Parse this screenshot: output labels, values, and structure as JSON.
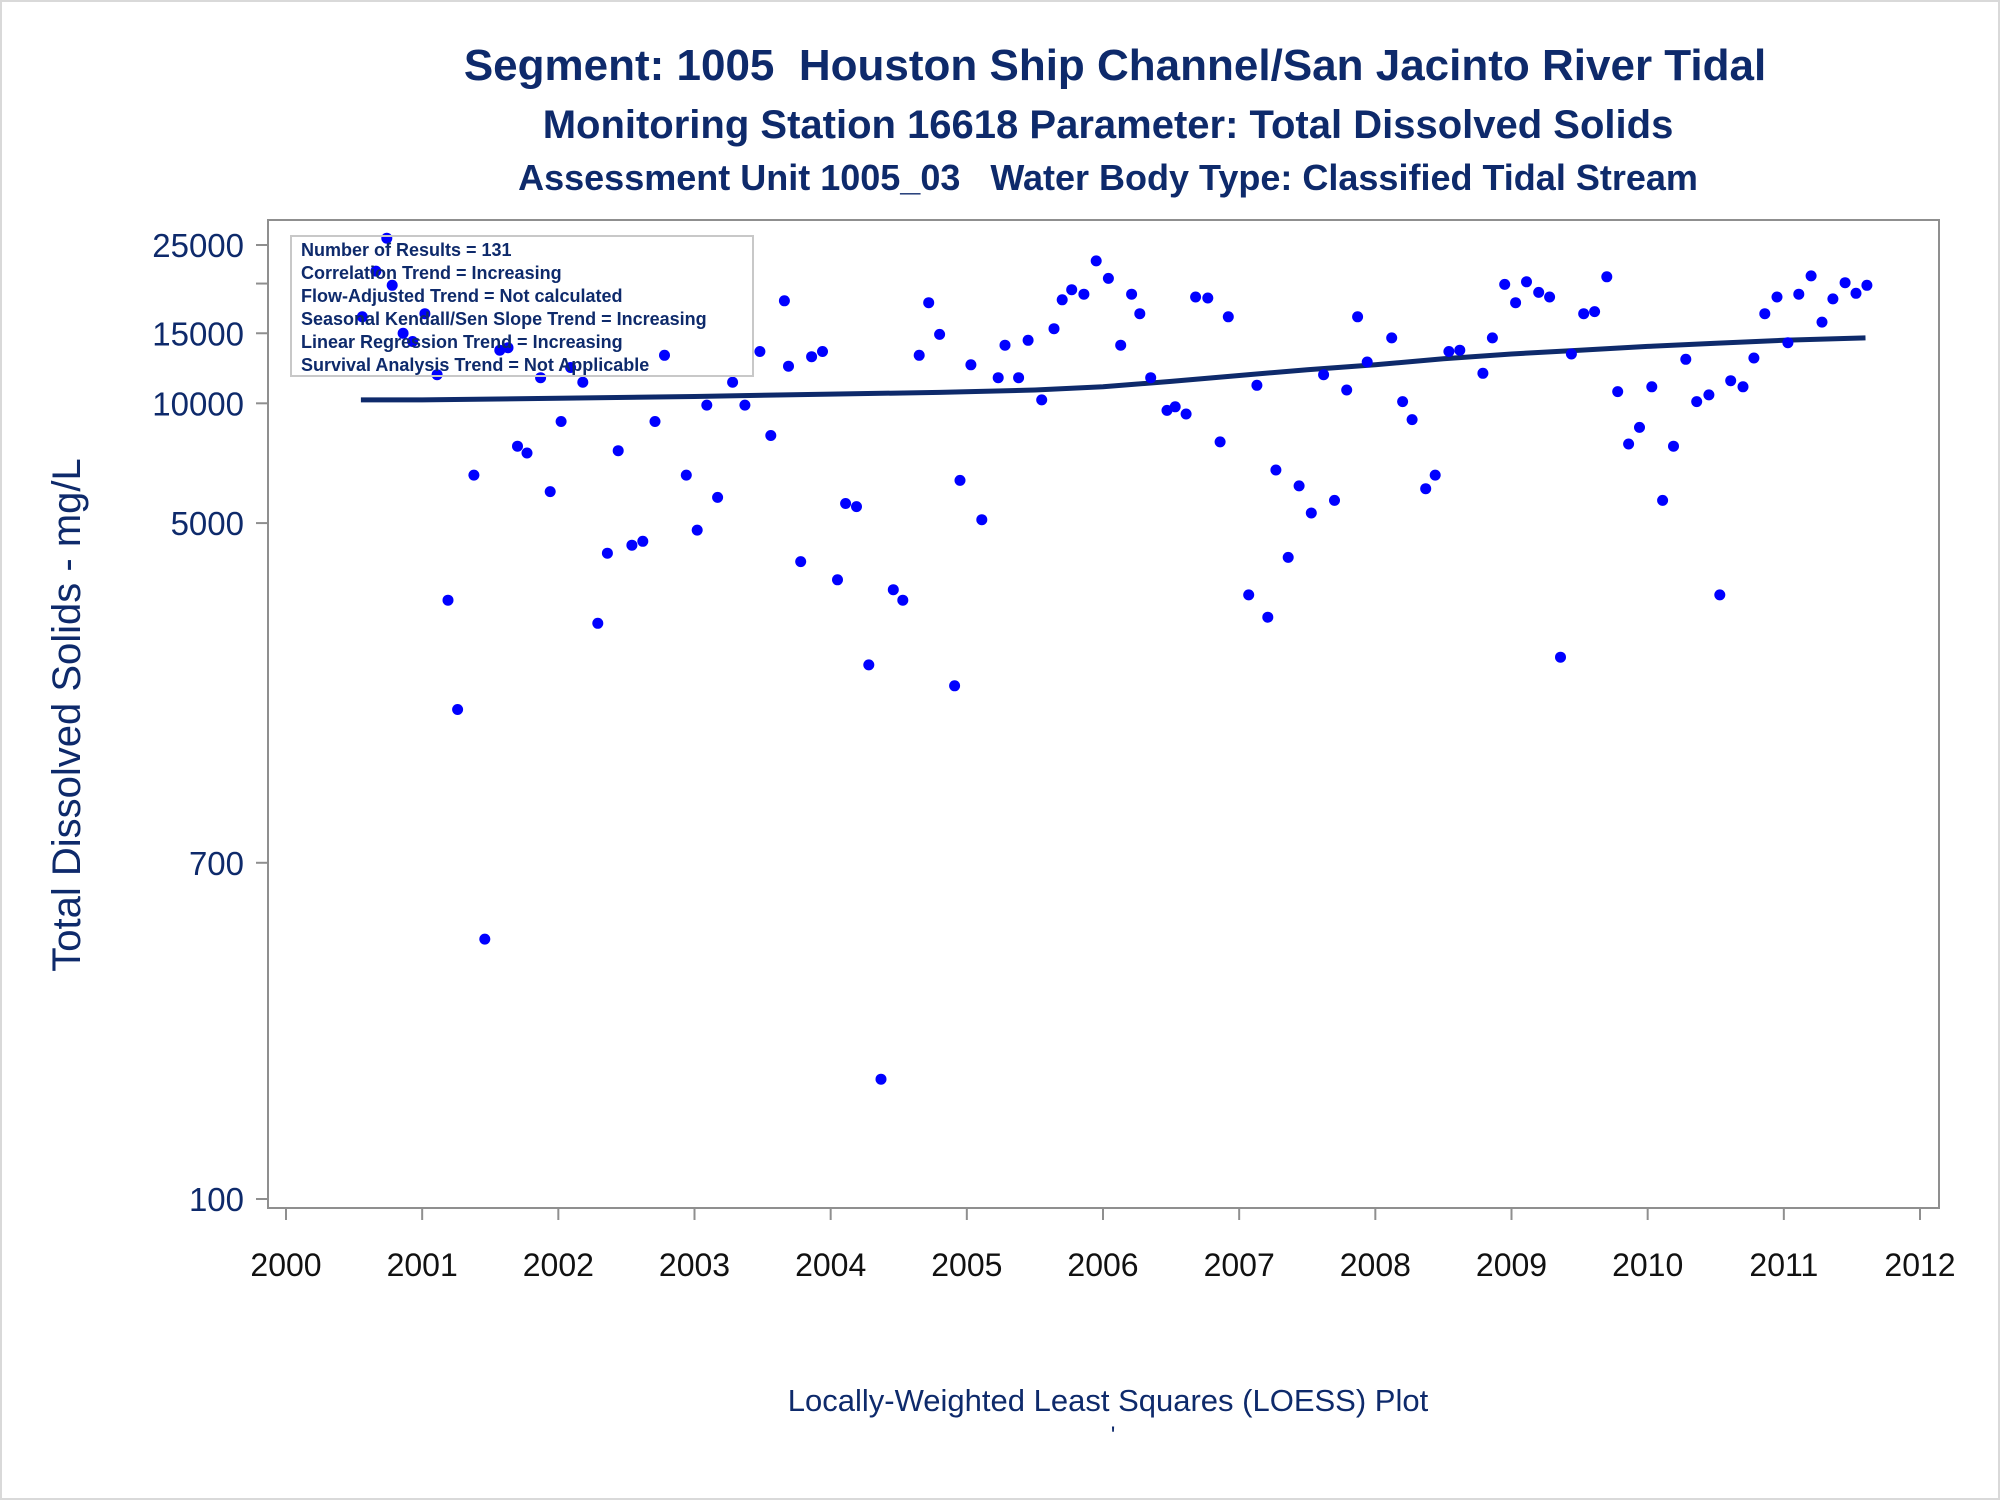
{
  "chart_data": {
    "type": "scatter",
    "title": "Segment: 1005  Houston Ship Channel/San Jacinto River Tidal",
    "subtitle": "Monitoring Station 16618 Parameter: Total Dissolved Solids",
    "subtitle2": "Assessment Unit 1005_03   Water Body Type: Classified Tidal Stream",
    "ylabel": "Total Dissolved Solids - mg/L",
    "footnote": "Locally-Weighted Least Squares (LOESS) Plot",
    "footnote_mark": "'",
    "y_scale": "log",
    "xlim": [
      2000,
      2012
    ],
    "ylim": [
      90,
      27000
    ],
    "x_ticks": [
      "2000",
      "2001",
      "2002",
      "2003",
      "2004",
      "2005",
      "2006",
      "2007",
      "2008",
      "2009",
      "2010",
      "2011",
      "2012"
    ],
    "y_ticks": [
      "25000",
      "15000",
      "10000",
      "5000",
      "700",
      "100"
    ],
    "stats_box": [
      "Number of Results = 131",
      "Correlation Trend = Increasing",
      "Flow-Adjusted Trend = Not calculated",
      "Seasonal Kendall/Sen Slope Trend = Increasing",
      "Linear Regression Trend = Increasing",
      "Survival Analysis Trend = Not Applicable"
    ],
    "point_color": "#0000ff",
    "trend_color": "#0e2a6b",
    "text_color": "#0e2a6b",
    "trend": {
      "name": "LOESS",
      "x": [
        2000.55,
        2001.0,
        2002.0,
        2003.0,
        2004.0,
        2004.8,
        2005.5,
        2006.0,
        2006.5,
        2007.0,
        2007.5,
        2008.0,
        2008.5,
        2009.0,
        2009.5,
        2010.0,
        2010.5,
        2011.0,
        2011.6
      ],
      "y": [
        10200,
        10200,
        10300,
        10400,
        10550,
        10650,
        10800,
        11000,
        11350,
        11750,
        12150,
        12500,
        12950,
        13300,
        13600,
        13900,
        14150,
        14400,
        14600
      ]
    },
    "points": {
      "name": "Total Dissolved Solids",
      "x": [
        2000.56,
        2000.66,
        2000.74,
        2000.78,
        2000.86,
        2000.93,
        2001.02,
        2001.11,
        2001.19,
        2001.26,
        2001.38,
        2001.46,
        2001.57,
        2001.63,
        2001.7,
        2001.77,
        2001.87,
        2001.94,
        2002.02,
        2002.09,
        2002.18,
        2002.29,
        2002.36,
        2002.44,
        2002.54,
        2002.62,
        2002.71,
        2002.78,
        2002.94,
        2003.02,
        2003.09,
        2003.17,
        2003.28,
        2003.37,
        2003.48,
        2003.56,
        2003.66,
        2003.69,
        2003.78,
        2003.86,
        2003.94,
        2004.05,
        2004.11,
        2004.19,
        2004.28,
        2004.37,
        2004.46,
        2004.53,
        2004.65,
        2004.72,
        2004.8,
        2004.91,
        2004.95,
        2005.03,
        2005.11,
        2005.23,
        2005.28,
        2005.38,
        2005.45,
        2005.55,
        2005.64,
        2005.7,
        2005.77,
        2005.86,
        2005.95,
        2006.04,
        2006.13,
        2006.21,
        2006.27,
        2006.35,
        2006.47,
        2006.53,
        2006.61,
        2006.68,
        2006.77,
        2006.86,
        2006.92,
        2007.07,
        2007.13,
        2007.21,
        2007.27,
        2007.36,
        2007.44,
        2007.53,
        2007.62,
        2007.7,
        2007.79,
        2007.87,
        2007.94,
        2008.12,
        2008.2,
        2008.27,
        2008.37,
        2008.44,
        2008.54,
        2008.62,
        2008.79,
        2008.86,
        2008.95,
        2009.03,
        2009.11,
        2009.2,
        2009.28,
        2009.36,
        2009.44,
        2009.53,
        2009.61,
        2009.7,
        2009.78,
        2009.86,
        2009.94,
        2010.03,
        2010.11,
        2010.19,
        2010.28,
        2010.36,
        2010.45,
        2010.53,
        2010.61,
        2010.7,
        2010.78,
        2010.86,
        2010.95,
        2011.03,
        2011.11,
        2011.2,
        2011.28,
        2011.36,
        2011.45,
        2011.53,
        2011.61
      ],
      "y": [
        16500,
        21500,
        26000,
        19800,
        15000,
        14300,
        16800,
        11800,
        3200,
        1700,
        6600,
        450,
        13600,
        13800,
        7800,
        7500,
        11600,
        6000,
        9000,
        12300,
        11300,
        2800,
        4200,
        7600,
        4400,
        4500,
        9000,
        13200,
        6600,
        4800,
        9900,
        5800,
        11300,
        9900,
        13500,
        8300,
        18100,
        12400,
        4000,
        13100,
        13500,
        3600,
        5600,
        5500,
        2200,
        200,
        3400,
        3200,
        13200,
        17900,
        14900,
        1950,
        6400,
        12500,
        5100,
        11600,
        14000,
        11600,
        14400,
        10200,
        15400,
        18200,
        19300,
        18800,
        22800,
        20600,
        14000,
        18800,
        16800,
        11600,
        9600,
        9800,
        9400,
        18500,
        18400,
        8000,
        16500,
        3300,
        11100,
        2900,
        6800,
        4100,
        6200,
        5300,
        11800,
        5700,
        10800,
        16500,
        12700,
        14600,
        10100,
        9100,
        6100,
        6600,
        13500,
        13600,
        11900,
        14600,
        19900,
        17900,
        20200,
        19000,
        18500,
        2300,
        13300,
        16800,
        17000,
        20800,
        10700,
        7900,
        8700,
        11000,
        5700,
        7800,
        12900,
        10100,
        10500,
        3300,
        11400,
        11000,
        13000,
        16800,
        18500,
        14200,
        18800,
        20900,
        16000,
        18300,
        20100,
        18900,
        19800
      ]
    }
  }
}
